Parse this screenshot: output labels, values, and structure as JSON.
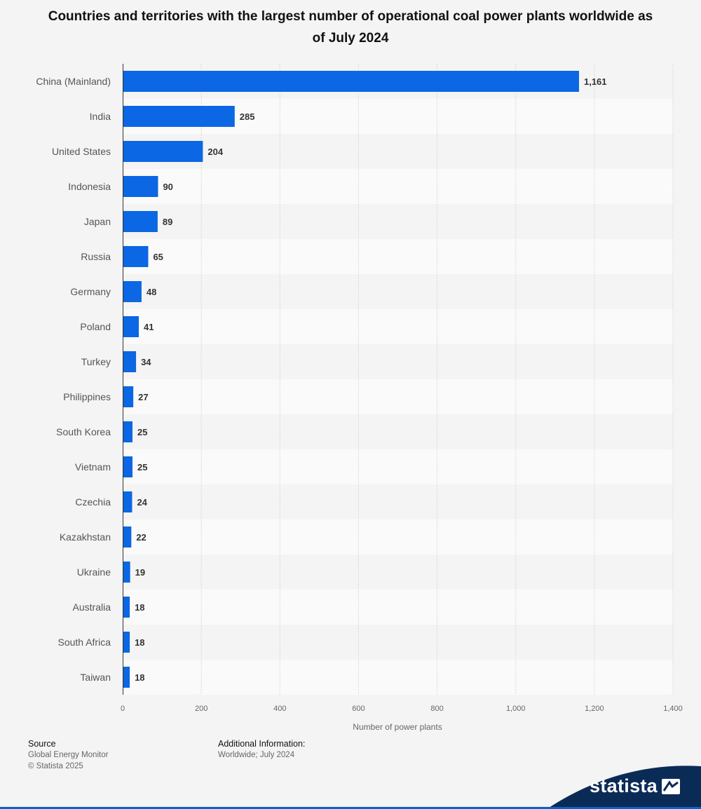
{
  "chart_data": {
    "type": "bar",
    "orientation": "horizontal",
    "title": "Countries and territories with the largest number of operational coal power plants worldwide as of July 2024",
    "xlabel": "Number of power plants",
    "ylabel": "",
    "xlim": [
      0,
      1400
    ],
    "xticks": [
      "0",
      "200",
      "400",
      "600",
      "800",
      "1,000",
      "1,200",
      "1,400"
    ],
    "categories": [
      "China (Mainland)",
      "India",
      "United States",
      "Indonesia",
      "Japan",
      "Russia",
      "Germany",
      "Poland",
      "Turkey",
      "Philippines",
      "South Korea",
      "Vietnam",
      "Czechia",
      "Kazakhstan",
      "Ukraine",
      "Australia",
      "South Africa",
      "Taiwan"
    ],
    "values": [
      1161,
      285,
      204,
      90,
      89,
      65,
      48,
      41,
      34,
      27,
      25,
      25,
      24,
      22,
      19,
      18,
      18,
      18
    ],
    "value_labels": [
      "1,161",
      "285",
      "204",
      "90",
      "89",
      "65",
      "48",
      "41",
      "34",
      "27",
      "25",
      "25",
      "24",
      "22",
      "19",
      "18",
      "18",
      "18"
    ],
    "bar_color": "#0b67e3",
    "grid": true
  },
  "footer": {
    "source_head": "Source",
    "source_line1": "Global Energy Monitor",
    "source_line2": "© Statista 2025",
    "info_head": "Additional Information:",
    "info_line1": "Worldwide; July 2024"
  },
  "brand": {
    "name": "statista"
  },
  "colors": {
    "accent": "#0b67e3",
    "brand_wave": "#0b2b57"
  }
}
